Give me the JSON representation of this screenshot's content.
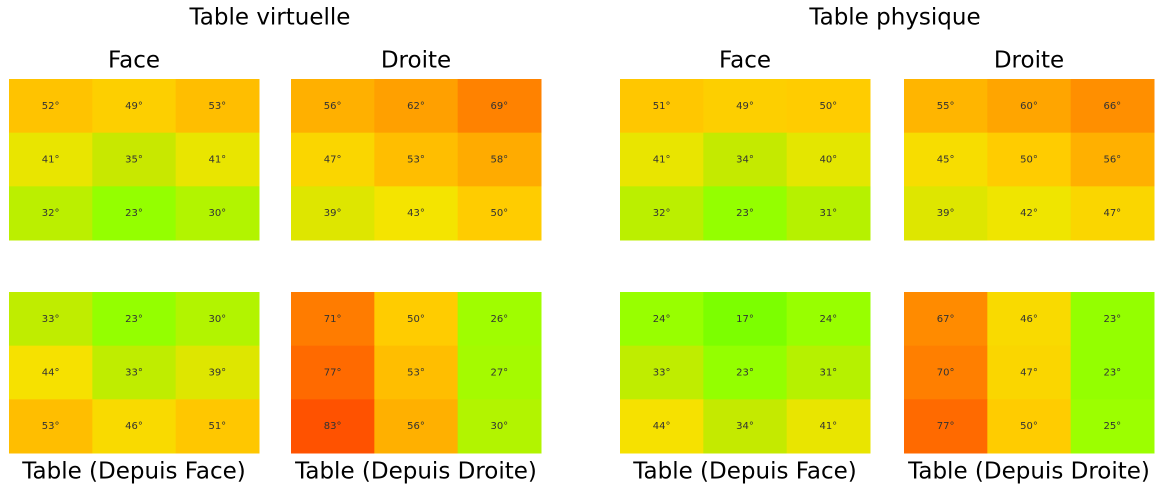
{
  "titles": [
    "Table virtuelle",
    "Table physique"
  ],
  "colorscale": [
    [
      17,
      "#7cff00"
    ],
    [
      25,
      "#9cff00"
    ],
    [
      35,
      "#c8e800"
    ],
    [
      43,
      "#f4e400"
    ],
    [
      50,
      "#ffcc00"
    ],
    [
      56,
      "#ffb000"
    ],
    [
      62,
      "#ffa000"
    ],
    [
      69,
      "#ff8200"
    ],
    [
      77,
      "#ff6a00"
    ],
    [
      83,
      "#ff5200"
    ]
  ],
  "chart_data": [
    {
      "type": "heatmap",
      "title": "Face",
      "values": [
        [
          52,
          49,
          53
        ],
        [
          41,
          35,
          41
        ],
        [
          32,
          23,
          30
        ]
      ],
      "value_labels": [
        [
          "52°",
          "49°",
          "53°"
        ],
        [
          "41°",
          "35°",
          "41°"
        ],
        [
          "32°",
          "23°",
          "30°"
        ]
      ]
    },
    {
      "type": "heatmap",
      "title": "Droite",
      "values": [
        [
          56,
          62,
          69
        ],
        [
          47,
          53,
          58
        ],
        [
          39,
          43,
          50
        ]
      ],
      "value_labels": [
        [
          "56°",
          "62°",
          "69°"
        ],
        [
          "47°",
          "53°",
          "58°"
        ],
        [
          "39°",
          "43°",
          "50°"
        ]
      ]
    },
    {
      "type": "heatmap",
      "title": "Face",
      "values": [
        [
          51,
          49,
          50
        ],
        [
          41,
          34,
          40
        ],
        [
          32,
          23,
          31
        ]
      ],
      "value_labels": [
        [
          "51°",
          "49°",
          "50°"
        ],
        [
          "41°",
          "34°",
          "40°"
        ],
        [
          "32°",
          "23°",
          "31°"
        ]
      ]
    },
    {
      "type": "heatmap",
      "title": "Droite",
      "values": [
        [
          55,
          60,
          66
        ],
        [
          45,
          50,
          56
        ],
        [
          39,
          42,
          47
        ]
      ],
      "value_labels": [
        [
          "55°",
          "60°",
          "66°"
        ],
        [
          "45°",
          "50°",
          "56°"
        ],
        [
          "39°",
          "42°",
          "47°"
        ]
      ]
    },
    {
      "type": "heatmap",
      "xlabel": "Table (Depuis Face)",
      "values": [
        [
          33,
          23,
          30
        ],
        [
          44,
          33,
          39
        ],
        [
          53,
          46,
          51
        ]
      ],
      "value_labels": [
        [
          "33°",
          "23°",
          "30°"
        ],
        [
          "44°",
          "33°",
          "39°"
        ],
        [
          "53°",
          "46°",
          "51°"
        ]
      ]
    },
    {
      "type": "heatmap",
      "xlabel": "Table (Depuis Droite)",
      "values": [
        [
          71,
          50,
          26
        ],
        [
          77,
          53,
          27
        ],
        [
          83,
          56,
          30
        ]
      ],
      "value_labels": [
        [
          "71°",
          "50°",
          "26°"
        ],
        [
          "77°",
          "53°",
          "27°"
        ],
        [
          "83°",
          "56°",
          "30°"
        ]
      ]
    },
    {
      "type": "heatmap",
      "xlabel": "Table (Depuis Face)",
      "values": [
        [
          24,
          17,
          24
        ],
        [
          33,
          23,
          31
        ],
        [
          44,
          34,
          41
        ]
      ],
      "value_labels": [
        [
          "24°",
          "17°",
          "24°"
        ],
        [
          "33°",
          "23°",
          "31°"
        ],
        [
          "44°",
          "34°",
          "41°"
        ]
      ]
    },
    {
      "type": "heatmap",
      "xlabel": "Table (Depuis Droite)",
      "values": [
        [
          67,
          46,
          23
        ],
        [
          70,
          47,
          23
        ],
        [
          77,
          50,
          25
        ]
      ],
      "value_labels": [
        [
          "67°",
          "46°",
          "23°"
        ],
        [
          "70°",
          "47°",
          "23°"
        ],
        [
          "77°",
          "50°",
          "25°"
        ]
      ]
    }
  ]
}
